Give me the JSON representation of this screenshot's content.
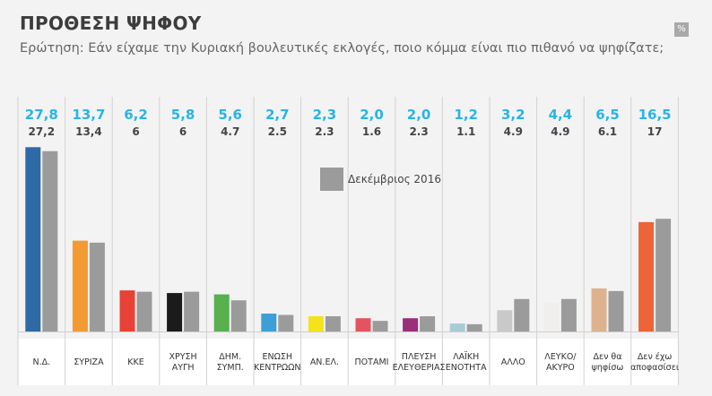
{
  "header": {
    "title": "ΠΡΟΘΕΣΗ ΨΗΦΟΥ",
    "subtitle": "Ερώτηση: Εάν είχαμε την Κυριακή βουλευτικές εκλογές, ποιο κόμμα είναι πιο πιθανό να ψηφίζατε;",
    "unit_badge": "%"
  },
  "chart_data": {
    "type": "bar",
    "categories": [
      [
        "Ν.Δ."
      ],
      [
        "ΣΥΡΙΖΑ"
      ],
      [
        "ΚΚΕ"
      ],
      [
        "ΧΡΥΣΗ",
        "ΑΥΓΗ"
      ],
      [
        "ΔΗΜ.",
        "ΣΥΜΠ."
      ],
      [
        "ΕΝΩΣΗ",
        "ΚΕΝΤΡΩΩΝ"
      ],
      [
        "ΑΝ.ΕΛ."
      ],
      [
        "ΠΟΤΑΜΙ"
      ],
      [
        "ΠΛΕΥΣΗ",
        "ΕΛΕΥΘΕΡΙΑΣ"
      ],
      [
        "ΛΑΪΚΗ",
        "ΕΝΟΤΗΤΑ"
      ],
      [
        "ΑΛΛΟ"
      ],
      [
        "ΛΕΥΚΟ/",
        "ΑΚΥΡΟ"
      ],
      [
        "Δεν θα",
        "ψηφίσω"
      ],
      [
        "Δεν έχω",
        "αποφασίσει"
      ]
    ],
    "series": [
      {
        "values": [
          27.8,
          13.7,
          6.2,
          5.8,
          5.6,
          2.7,
          2.3,
          2.0,
          2.0,
          1.2,
          3.2,
          4.4,
          6.5,
          16.5
        ],
        "labels": [
          "27,8",
          "13,7",
          "6,2",
          "5,8",
          "5,6",
          "2,7",
          "2,3",
          "2,0",
          "2,0",
          "1,2",
          "3,2",
          "4,4",
          "6,5",
          "16,5"
        ],
        "colors": [
          "#2e6aa6",
          "#f39a33",
          "#e84135",
          "#1b1b1b",
          "#58b04f",
          "#3d9fd6",
          "#f5e21b",
          "#e4535f",
          "#9a2f7a",
          "#a8ccd4",
          "#c9c9c9",
          "#f1efed",
          "#ddb28c",
          "#ec6437"
        ]
      },
      {
        "name": "Δεκέμβριος 2016",
        "values": [
          27.2,
          13.4,
          6,
          6,
          4.7,
          2.5,
          2.3,
          1.6,
          2.3,
          1.1,
          4.9,
          4.9,
          6.1,
          17
        ],
        "labels": [
          "27,2",
          "13,4",
          "6",
          "6",
          "4.7",
          "2.5",
          "2.3",
          "1.6",
          "2.3",
          "1.1",
          "4.9",
          "4.9",
          "6.1",
          "17"
        ],
        "color": "#9b9b9b"
      }
    ],
    "ylim": [
      0,
      30
    ],
    "grid": false,
    "legend": "center"
  }
}
